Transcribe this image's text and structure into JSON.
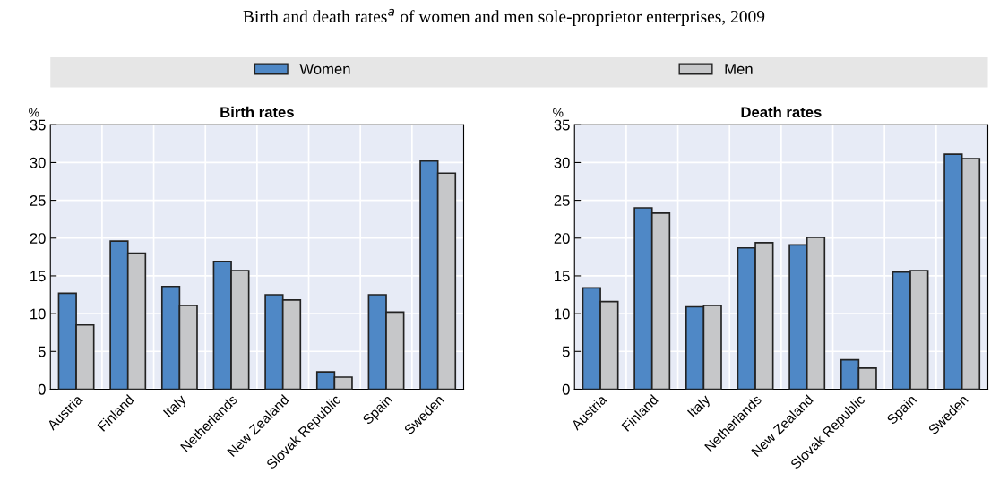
{
  "chart_data": [
    {
      "type": "bar",
      "title": "Birth and death rates$^{a}$ of women and men sole-proprietor enterprises, 2009",
      "subtitle": "Birth rates",
      "ylabel": "%",
      "categories": [
        "Austria",
        "Finland",
        "Italy",
        "Netherlands",
        "New Zealand",
        "Slovak Republic",
        "Spain",
        "Sweden"
      ],
      "series": [
        {
          "name": "Women",
          "color": "#4f88c6",
          "values": [
            12.7,
            19.6,
            13.6,
            16.9,
            12.5,
            2.3,
            12.5,
            30.2
          ]
        },
        {
          "name": "Men",
          "color": "#c6c7c9",
          "values": [
            8.5,
            18.0,
            11.1,
            15.7,
            11.8,
            1.6,
            10.2,
            28.6
          ]
        }
      ],
      "ylim": [
        0,
        35
      ],
      "yticks": [
        0,
        5,
        10,
        15,
        20,
        25,
        30,
        35
      ],
      "grid": true,
      "legend": "top"
    },
    {
      "type": "bar",
      "subtitle": "Death rates",
      "ylabel": "%",
      "categories": [
        "Austria",
        "Finland",
        "Italy",
        "Netherlands",
        "New Zealand",
        "Slovak Republic",
        "Spain",
        "Sweden"
      ],
      "series": [
        {
          "color": "#4f88c6",
          "values": [
            13.4,
            24.0,
            10.9,
            18.7,
            19.1,
            3.9,
            15.5,
            31.1
          ]
        },
        {
          "color": "#c6c7c9",
          "values": [
            11.6,
            23.3,
            11.1,
            19.4,
            20.1,
            2.8,
            15.7,
            30.5
          ]
        }
      ],
      "ylim": [
        0,
        35
      ],
      "yticks": [
        0,
        5,
        10,
        15,
        20,
        25,
        30,
        35
      ],
      "grid": true
    }
  ]
}
